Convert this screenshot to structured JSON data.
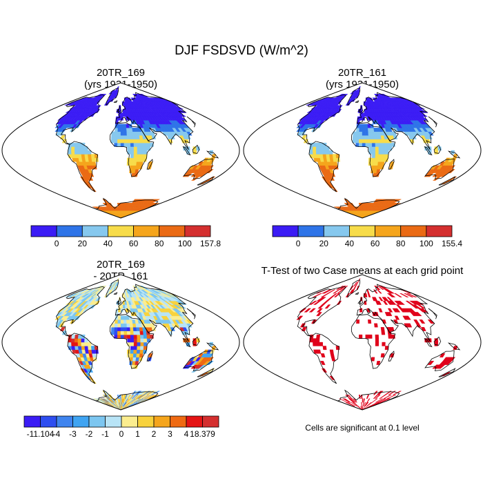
{
  "title": "DJF FSDSVD (W/m^2)",
  "panels": [
    {
      "title_line1": "20TR_169",
      "title_line2": "(yrs 1931-1950)"
    },
    {
      "title_line1": "20TR_161",
      "title_line2": "(yrs 1931-1950)"
    },
    {
      "title_line1": "20TR_169",
      "title_line2": "- 20TR_161"
    },
    {
      "title_line1": "T-Test of two Case means at each grid point",
      "title_line2": ""
    }
  ],
  "note": "Cells are significant at 0.1 level",
  "colorbars": [
    {
      "labels": [
        "0",
        "20",
        "40",
        "60",
        "80",
        "100",
        "157.8"
      ],
      "colors": [
        "#3b1cf5",
        "#2e74e8",
        "#86c8ee",
        "#f7dc4a",
        "#f5a51c",
        "#ea6a14",
        "#d42f2f"
      ]
    },
    {
      "labels": [
        "0",
        "20",
        "40",
        "60",
        "80",
        "100",
        "155.4"
      ],
      "colors": [
        "#3b1cf5",
        "#2e74e8",
        "#86c8ee",
        "#f7dc4a",
        "#f5a51c",
        "#ea6a14",
        "#d42f2f"
      ]
    },
    {
      "labels": [
        "-11.104",
        "-4",
        "-3",
        "-2",
        "-1",
        "0",
        "1",
        "2",
        "3",
        "4",
        "18.379"
      ],
      "colors": [
        "#3b1cf5",
        "#2e4ef0",
        "#3f84ee",
        "#3fa4f2",
        "#7cc6f0",
        "#b8e4f6",
        "#fbed8f",
        "#f8d23c",
        "#f5a51c",
        "#ef6a12",
        "#e51414",
        "#d42f2f"
      ]
    }
  ],
  "chart_data": [
    {
      "type": "heatmap",
      "title": "20TR_169 (yrs 1931-1950)",
      "units": "W/m^2",
      "range": [
        0,
        157.8
      ],
      "levels": [
        20,
        40,
        60,
        80,
        100
      ]
    },
    {
      "type": "heatmap",
      "title": "20TR_161 (yrs 1931-1950)",
      "units": "W/m^2",
      "range": [
        0,
        155.4
      ],
      "levels": [
        20,
        40,
        60,
        80,
        100
      ]
    },
    {
      "type": "heatmap",
      "title": "20TR_169 - 20TR_161",
      "units": "W/m^2",
      "range": [
        -11.104,
        18.379
      ],
      "levels": [
        -4,
        -3,
        -2,
        -1,
        0,
        1,
        2,
        3,
        4
      ]
    },
    {
      "type": "heatmap",
      "title": "T-Test of two Case means at each grid point",
      "significance_level": 0.1,
      "significant_color": "#e0001a"
    }
  ]
}
